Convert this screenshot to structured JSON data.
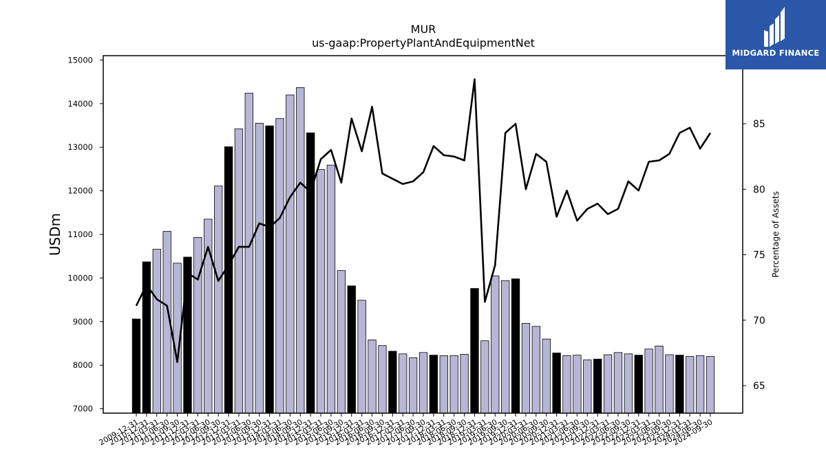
{
  "chart_data": {
    "type": "bar+line",
    "title": "MUR",
    "subtitle": "us-gaap:PropertyPlantAndEquipmentNet",
    "ylabel_left": "USDm",
    "ylabel_right": "Percentage of Assets",
    "ylim_left": [
      6900,
      15100
    ],
    "ylim_right": [
      62.9,
      90.2
    ],
    "yticks_left": [
      7000,
      8000,
      9000,
      10000,
      11000,
      12000,
      13000,
      14000,
      15000
    ],
    "yticks_right": [
      65,
      70,
      75,
      80,
      85
    ],
    "bar_colors": {
      "annual": "#000000",
      "quarterly": "#b8b6d6"
    },
    "line_color": "#000000",
    "categories": [
      "2009-12-31",
      "2010-12-31",
      "2011-03-31",
      "2011-06-30",
      "2011-09-30",
      "2011-12-31",
      "2012-03-31",
      "2012-06-30",
      "2012-09-30",
      "2012-12-31",
      "2013-03-31",
      "2013-06-30",
      "2013-09-30",
      "2013-12-31",
      "2014-03-31",
      "2014-06-30",
      "2014-09-30",
      "2014-12-31",
      "2015-03-31",
      "2015-06-30",
      "2015-09-30",
      "2015-12-31",
      "2016-03-31",
      "2016-06-30",
      "2016-09-30",
      "2016-12-31",
      "2017-03-31",
      "2017-06-30",
      "2017-09-30",
      "2017-12-31",
      "2018-03-31",
      "2018-06-30",
      "2018-09-30",
      "2018-12-31",
      "2019-03-31",
      "2019-06-30",
      "2019-09-30",
      "2019-12-31",
      "2020-03-31",
      "2020-06-30",
      "2020-09-30",
      "2020-12-31",
      "2021-03-31",
      "2021-06-30",
      "2021-09-30",
      "2021-12-31",
      "2022-03-31",
      "2022-06-30",
      "2022-09-30",
      "2022-12-31",
      "2023-03-31",
      "2023-06-30",
      "2023-09-30",
      "2023-12-31",
      "2024-03-31",
      "2024-06-30",
      "2024-09-30"
    ],
    "x_tick_labels": [
      "2009-12-31",
      "2010-12-31",
      "2011-03-31",
      "2011-06-30",
      "2011-09-30",
      "2011-12-31",
      "2012-03-31",
      "2012-06-30",
      "2012-09-30",
      "2012-12-31",
      "2013-03-31",
      "2013-06-30",
      "2013-09-30",
      "2013-12-31",
      "2014-03-31",
      "2014-06-30",
      "2014-09-30",
      "2014-12-31",
      "2015-03-31",
      "2015-06-30",
      "2015-09-30",
      "2015-12-31",
      "2016-03-31",
      "2016-06-30",
      "2016-09-30",
      "2016-12-31",
      "2017-03-31",
      "2017-06-30",
      "2017-09-30",
      "2017-12-31",
      "2018-03-31",
      "2018-06-30",
      "2018-09-30",
      "2018-12-31",
      "2019-03-31",
      "2019-06-30",
      "2019-09-30",
      "2019-12-31",
      "2020-03-31",
      "2020-06-30",
      "2020-09-30",
      "2020-12-31",
      "2021-03-31",
      "2021-06-30",
      "2021-09-30",
      "2021-12-31",
      "2022-03-31",
      "2022-06-30",
      "2022-09-30",
      "2022-12-31",
      "2023-03-31",
      "2023-06-30",
      "2023-09-30",
      "2023-12-31",
      "2024-03-31",
      "2024-06-30",
      "2024-09-30"
    ],
    "annual": [
      true,
      true,
      false,
      false,
      false,
      true,
      false,
      false,
      false,
      true,
      false,
      false,
      false,
      true,
      false,
      false,
      false,
      true,
      false,
      false,
      false,
      true,
      false,
      false,
      false,
      true,
      false,
      false,
      false,
      true,
      false,
      false,
      false,
      true,
      false,
      false,
      false,
      true,
      false,
      false,
      false,
      true,
      false,
      false,
      false,
      true,
      false,
      false,
      false,
      true,
      false,
      false,
      false,
      true,
      false,
      false,
      false
    ],
    "values": [
      9060,
      10370,
      10660,
      11070,
      10340,
      10480,
      10930,
      11350,
      12110,
      13010,
      13420,
      14240,
      13550,
      13490,
      13660,
      14200,
      14370,
      13330,
      12490,
      12590,
      10170,
      9820,
      9490,
      8580,
      8450,
      8320,
      8260,
      8170,
      8290,
      8230,
      8220,
      8220,
      8250,
      9760,
      8560,
      10050,
      9940,
      9980,
      8960,
      8890,
      8600,
      8280,
      8220,
      8230,
      8120,
      8140,
      8240,
      8290,
      8260,
      8230,
      8370,
      8440,
      8240,
      8230,
      8200,
      8220,
      8200
    ],
    "pct_of_assets": [
      71.1,
      72.7,
      71.6,
      71.1,
      66.8,
      73.6,
      73.1,
      75.6,
      73.0,
      74.2,
      75.6,
      75.6,
      77.4,
      77.1,
      77.8,
      79.4,
      80.5,
      79.8,
      82.3,
      83.0,
      80.5,
      85.4,
      82.9,
      86.3,
      81.2,
      80.8,
      80.4,
      80.6,
      81.3,
      83.3,
      82.6,
      82.5,
      82.2,
      88.4,
      71.4,
      74.2,
      84.3,
      85.0,
      80.0,
      82.7,
      82.1,
      77.9,
      79.9,
      77.6,
      78.5,
      78.9,
      78.1,
      78.5,
      80.6,
      79.9,
      82.1,
      82.2,
      82.7,
      84.3,
      84.7,
      83.1,
      84.3
    ]
  },
  "logo": {
    "name": "midgard-finance",
    "text": "MIDGARD FINANCE",
    "background": "#2b57a8"
  }
}
